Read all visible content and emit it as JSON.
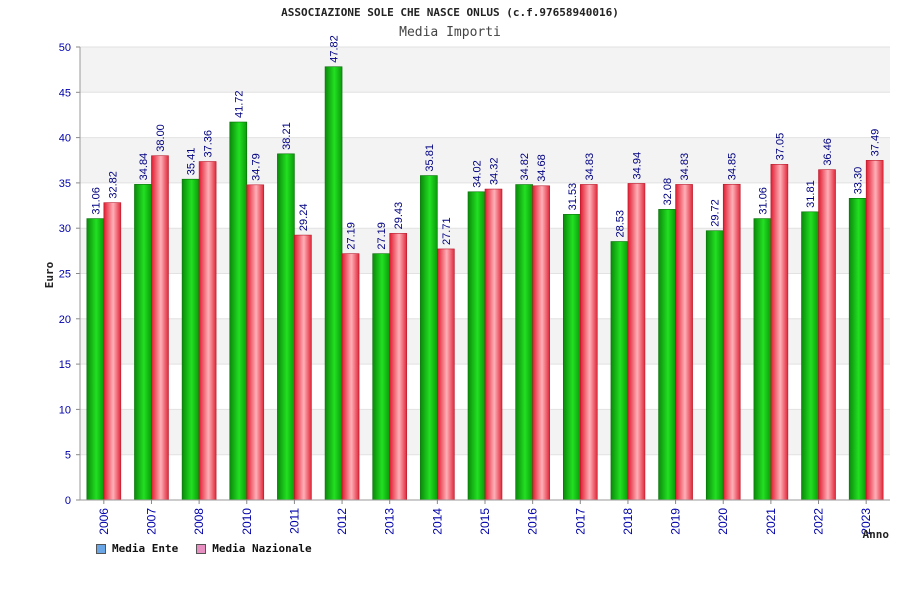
{
  "header": {
    "title": "ASSOCIAZIONE SOLE CHE NASCE ONLUS (c.f.97658940016)",
    "subtitle": "Media Importi"
  },
  "legend": [
    {
      "label": "Media Ente",
      "color": "#6aa5e6"
    },
    {
      "label": "Media Nazionale",
      "color": "#e68fc0"
    }
  ],
  "colors": {
    "ente": "#11b411",
    "nazionale": "#e83a4a",
    "axis_text": "#0000aa"
  },
  "chart_data": {
    "type": "bar",
    "title": "ASSOCIAZIONE SOLE CHE NASCE ONLUS (c.f.97658940016)",
    "subtitle": "Media Importi",
    "xlabel": "Anno",
    "ylabel": "Euro",
    "ylim": [
      0,
      50
    ],
    "yticks": [
      0,
      5,
      10,
      15,
      20,
      25,
      30,
      35,
      40,
      45,
      50
    ],
    "grid": true,
    "legend_position": "bottom-left",
    "categories": [
      "2006",
      "2007",
      "2008",
      "2010",
      "2011",
      "2012",
      "2013",
      "2014",
      "2015",
      "2016",
      "2017",
      "2018",
      "2019",
      "2020",
      "2021",
      "2022",
      "2023"
    ],
    "series": [
      {
        "name": "Media Ente",
        "values": [
          31.06,
          34.84,
          35.41,
          41.72,
          38.21,
          47.82,
          27.19,
          35.81,
          34.02,
          34.82,
          31.53,
          28.53,
          32.08,
          29.72,
          31.06,
          31.81,
          33.3
        ]
      },
      {
        "name": "Media Nazionale",
        "values": [
          32.82,
          38.0,
          37.36,
          34.79,
          29.24,
          27.19,
          29.43,
          27.71,
          34.32,
          34.68,
          34.83,
          34.94,
          34.83,
          34.85,
          37.05,
          36.46,
          37.49
        ]
      }
    ]
  }
}
